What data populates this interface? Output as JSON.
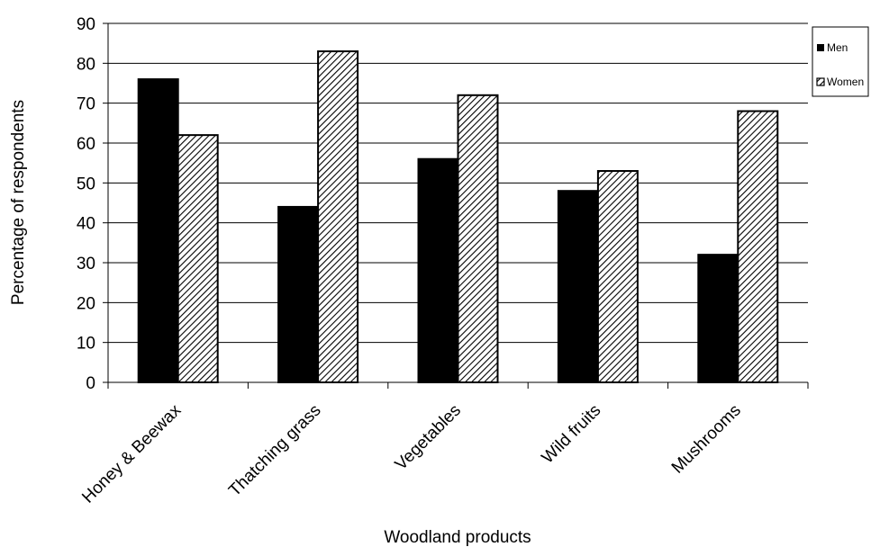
{
  "chart_data": {
    "type": "bar",
    "categories": [
      "Honey & Beewax",
      "Thatching grass",
      "Vegetables",
      "Wild fruits",
      "Mushrooms"
    ],
    "series": [
      {
        "name": "Men",
        "values": [
          76,
          44,
          56,
          48,
          32
        ],
        "fill": "solid",
        "color": "#000000"
      },
      {
        "name": "Women",
        "values": [
          62,
          83,
          72,
          53,
          68
        ],
        "fill": "diagonal-hatch",
        "color": "#000000"
      }
    ],
    "title": "",
    "xlabel": "Woodland products",
    "ylabel": "Percentage of respondents",
    "ylim": [
      0,
      90
    ],
    "yticks": [
      "0",
      "10",
      "20",
      "30",
      "40",
      "50",
      "60",
      "70",
      "80",
      "90"
    ],
    "grid": true,
    "legend_position": "right"
  }
}
